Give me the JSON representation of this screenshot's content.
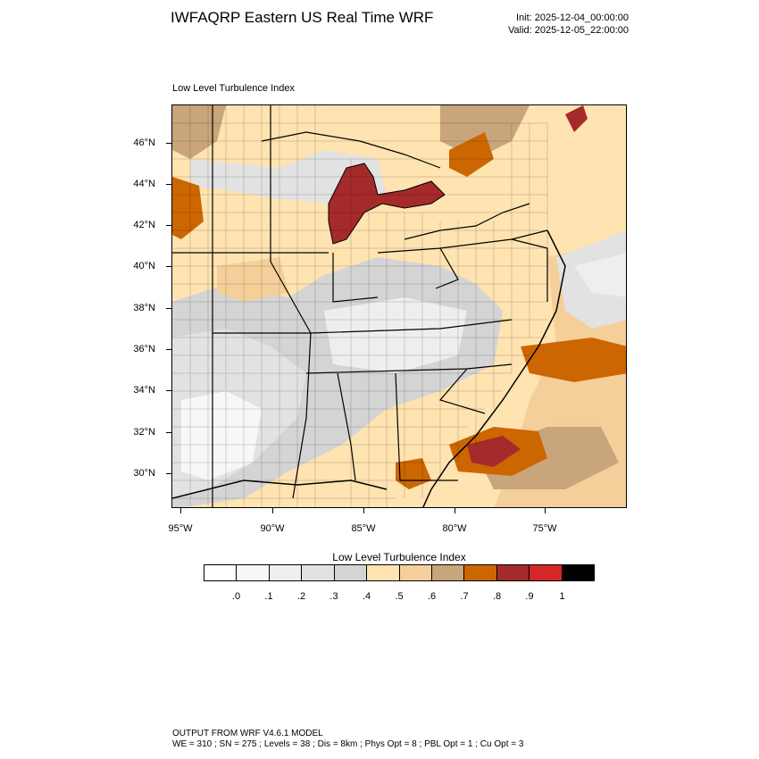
{
  "header": {
    "title": "IWFAQRP Eastern US Real Time WRF",
    "init": "Init: 2025-12-04_00:00:00",
    "valid": "Valid: 2025-12-05_22:00:00"
  },
  "map": {
    "subtitle": "Low Level Turbulence Index",
    "lat_labels": [
      "46°N",
      "44°N",
      "42°N",
      "40°N",
      "38°N",
      "36°N",
      "34°N",
      "32°N",
      "30°N"
    ],
    "lon_labels": [
      "95°W",
      "90°W",
      "85°W",
      "80°W",
      "75°W"
    ]
  },
  "colorbar": {
    "title": "Low Level Turbulence Index",
    "colors": [
      "#ffffff",
      "#f7f7f7",
      "#eeeeee",
      "#e2e2e2",
      "#d4d4d4",
      "#ffe3b0",
      "#f5cf9a",
      "#c9a57c",
      "#cc6600",
      "#a52a2a",
      "#d62728",
      "#000000"
    ],
    "labels": [
      ".0",
      ".1",
      ".2",
      ".3",
      ".4",
      ".5",
      ".6",
      ".7",
      ".8",
      ".9",
      "1"
    ]
  },
  "footer": {
    "line1": "OUTPUT FROM WRF V4.6.1 MODEL",
    "line2": "WE = 310 ; SN = 275 ; Levels = 38 ; Dis = 8km ; Phys Opt = 8 ; PBL Opt = 1 ; Cu Opt = 3"
  }
}
